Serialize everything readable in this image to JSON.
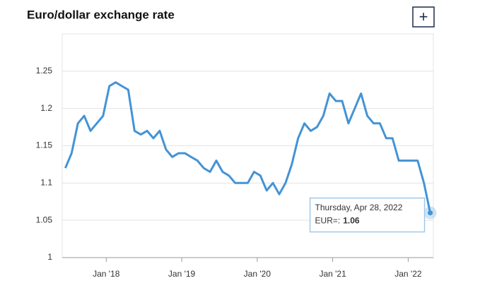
{
  "chart_data": {
    "type": "line",
    "title": "Euro/dollar exchange rate",
    "button": "+",
    "x": [
      "2017-06",
      "2017-07",
      "2017-08",
      "2017-09",
      "2017-10",
      "2017-11",
      "2017-12",
      "2018-01",
      "2018-02",
      "2018-03",
      "2018-04",
      "2018-05",
      "2018-06",
      "2018-07",
      "2018-08",
      "2018-09",
      "2018-10",
      "2018-11",
      "2018-12",
      "2019-01",
      "2019-02",
      "2019-03",
      "2019-04",
      "2019-05",
      "2019-06",
      "2019-07",
      "2019-08",
      "2019-09",
      "2019-10",
      "2019-11",
      "2019-12",
      "2020-01",
      "2020-02",
      "2020-03",
      "2020-04",
      "2020-05",
      "2020-06",
      "2020-07",
      "2020-08",
      "2020-09",
      "2020-10",
      "2020-11",
      "2020-12",
      "2021-01",
      "2021-02",
      "2021-03",
      "2021-04",
      "2021-05",
      "2021-06",
      "2021-07",
      "2021-08",
      "2021-09",
      "2021-10",
      "2021-11",
      "2021-12",
      "2022-01",
      "2022-02",
      "2022-03",
      "2022-04"
    ],
    "series": [
      {
        "name": "EUR=",
        "color": "#4393d6",
        "values": [
          1.12,
          1.14,
          1.18,
          1.19,
          1.17,
          1.18,
          1.19,
          1.23,
          1.235,
          1.23,
          1.225,
          1.17,
          1.165,
          1.17,
          1.16,
          1.17,
          1.145,
          1.135,
          1.14,
          1.14,
          1.135,
          1.13,
          1.12,
          1.115,
          1.13,
          1.115,
          1.11,
          1.1,
          1.1,
          1.1,
          1.115,
          1.11,
          1.09,
          1.1,
          1.085,
          1.1,
          1.125,
          1.16,
          1.18,
          1.17,
          1.175,
          1.19,
          1.22,
          1.21,
          1.21,
          1.18,
          1.2,
          1.22,
          1.19,
          1.18,
          1.18,
          1.16,
          1.16,
          1.13,
          1.13,
          1.13,
          1.13,
          1.1,
          1.06
        ]
      }
    ],
    "xlim": [
      "2017-06",
      "2022-05"
    ],
    "xticks": [
      {
        "value": "2018-01",
        "label": "Jan '18"
      },
      {
        "value": "2019-01",
        "label": "Jan '19"
      },
      {
        "value": "2020-01",
        "label": "Jan '20"
      },
      {
        "value": "2021-01",
        "label": "Jan '21"
      },
      {
        "value": "2022-01",
        "label": "Jan '22"
      }
    ],
    "ylim": [
      1,
      1.3
    ],
    "yticks": [
      1,
      1.05,
      1.1,
      1.15,
      1.2,
      1.25
    ],
    "grid": true,
    "tooltip": {
      "date": "Thursday, Apr 28, 2022",
      "label": "EUR=:",
      "value": 1.06
    }
  }
}
